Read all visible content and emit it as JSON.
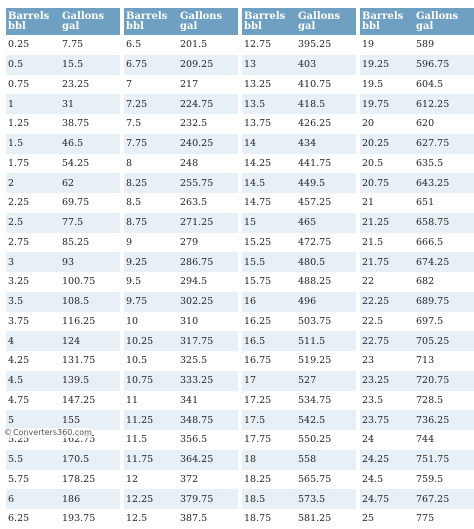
{
  "headers": {
    "barrels": "Barrels\nbbl",
    "gallons": "Gallons\ngal"
  },
  "columns": [
    {
      "rows": [
        [
          "0.25",
          "7.75"
        ],
        [
          "0.5",
          "15.5"
        ],
        [
          "0.75",
          "23.25"
        ],
        [
          "1",
          "31"
        ],
        [
          "1.25",
          "38.75"
        ],
        [
          "1.5",
          "46.5"
        ],
        [
          "1.75",
          "54.25"
        ],
        [
          "2",
          "62"
        ],
        [
          "2.25",
          "69.75"
        ],
        [
          "2.5",
          "77.5"
        ],
        [
          "2.75",
          "85.25"
        ],
        [
          "3",
          "93"
        ],
        [
          "3.25",
          "100.75"
        ],
        [
          "3.5",
          "108.5"
        ],
        [
          "3.75",
          "116.25"
        ],
        [
          "4",
          "124"
        ],
        [
          "4.25",
          "131.75"
        ],
        [
          "4.5",
          "139.5"
        ],
        [
          "4.75",
          "147.25"
        ],
        [
          "5",
          "155"
        ],
        [
          "5.25",
          "162.75"
        ],
        [
          "5.5",
          "170.5"
        ],
        [
          "5.75",
          "178.25"
        ],
        [
          "6",
          "186"
        ],
        [
          "6.25",
          "193.75"
        ]
      ]
    },
    {
      "rows": [
        [
          "6.5",
          "201.5"
        ],
        [
          "6.75",
          "209.25"
        ],
        [
          "7",
          "217"
        ],
        [
          "7.25",
          "224.75"
        ],
        [
          "7.5",
          "232.5"
        ],
        [
          "7.75",
          "240.25"
        ],
        [
          "8",
          "248"
        ],
        [
          "8.25",
          "255.75"
        ],
        [
          "8.5",
          "263.5"
        ],
        [
          "8.75",
          "271.25"
        ],
        [
          "9",
          "279"
        ],
        [
          "9.25",
          "286.75"
        ],
        [
          "9.5",
          "294.5"
        ],
        [
          "9.75",
          "302.25"
        ],
        [
          "10",
          "310"
        ],
        [
          "10.25",
          "317.75"
        ],
        [
          "10.5",
          "325.5"
        ],
        [
          "10.75",
          "333.25"
        ],
        [
          "11",
          "341"
        ],
        [
          "11.25",
          "348.75"
        ],
        [
          "11.5",
          "356.5"
        ],
        [
          "11.75",
          "364.25"
        ],
        [
          "12",
          "372"
        ],
        [
          "12.25",
          "379.75"
        ],
        [
          "12.5",
          "387.5"
        ]
      ]
    },
    {
      "rows": [
        [
          "12.75",
          "395.25"
        ],
        [
          "13",
          "403"
        ],
        [
          "13.25",
          "410.75"
        ],
        [
          "13.5",
          "418.5"
        ],
        [
          "13.75",
          "426.25"
        ],
        [
          "14",
          "434"
        ],
        [
          "14.25",
          "441.75"
        ],
        [
          "14.5",
          "449.5"
        ],
        [
          "14.75",
          "457.25"
        ],
        [
          "15",
          "465"
        ],
        [
          "15.25",
          "472.75"
        ],
        [
          "15.5",
          "480.5"
        ],
        [
          "15.75",
          "488.25"
        ],
        [
          "16",
          "496"
        ],
        [
          "16.25",
          "503.75"
        ],
        [
          "16.5",
          "511.5"
        ],
        [
          "16.75",
          "519.25"
        ],
        [
          "17",
          "527"
        ],
        [
          "17.25",
          "534.75"
        ],
        [
          "17.5",
          "542.5"
        ],
        [
          "17.75",
          "550.25"
        ],
        [
          "18",
          "558"
        ],
        [
          "18.25",
          "565.75"
        ],
        [
          "18.5",
          "573.5"
        ],
        [
          "18.75",
          "581.25"
        ]
      ]
    },
    {
      "rows": [
        [
          "19",
          "589"
        ],
        [
          "19.25",
          "596.75"
        ],
        [
          "19.5",
          "604.5"
        ],
        [
          "19.75",
          "612.25"
        ],
        [
          "20",
          "620"
        ],
        [
          "20.25",
          "627.75"
        ],
        [
          "20.5",
          "635.5"
        ],
        [
          "20.75",
          "643.25"
        ],
        [
          "21",
          "651"
        ],
        [
          "21.25",
          "658.75"
        ],
        [
          "21.5",
          "666.5"
        ],
        [
          "21.75",
          "674.25"
        ],
        [
          "22",
          "682"
        ],
        [
          "22.25",
          "689.75"
        ],
        [
          "22.5",
          "697.5"
        ],
        [
          "22.75",
          "705.25"
        ],
        [
          "23",
          "713"
        ],
        [
          "23.25",
          "720.75"
        ],
        [
          "23.5",
          "728.5"
        ],
        [
          "23.75",
          "736.25"
        ],
        [
          "24",
          "744"
        ],
        [
          "24.25",
          "751.75"
        ],
        [
          "24.5",
          "759.5"
        ],
        [
          "24.75",
          "767.25"
        ],
        [
          "25",
          "775"
        ]
      ]
    }
  ],
  "footer": {
    "copyright": "©",
    "site": "Converters360.com"
  },
  "colors": {
    "header_bg": "#6f9fc1",
    "stripe": "#e8f0f7"
  }
}
